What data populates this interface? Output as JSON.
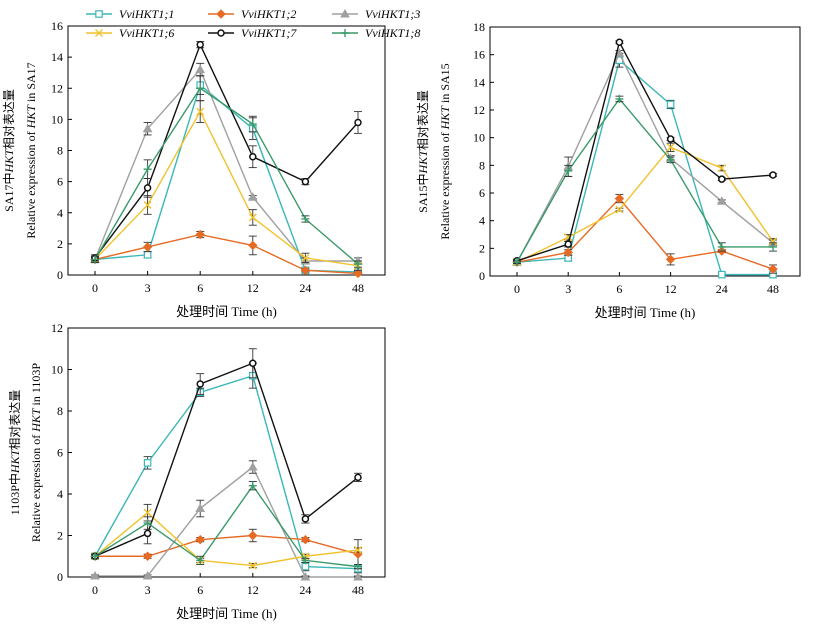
{
  "chart_data": [
    {
      "type": "line",
      "panel": "SA17",
      "categories": [
        "0",
        "3",
        "6",
        "12",
        "24",
        "48"
      ],
      "xlabel": "处理时间 Time (h)",
      "ylabel_line1_prefix": "SA17中",
      "ylabel_line1_gene": "HKT",
      "ylabel_line1_suffix": "相对表达量",
      "ylabel_line2_prefix": "Relative expression of ",
      "ylabel_line2_gene": "HKT",
      "ylabel_line2_suffix": " in SA17",
      "ylim": [
        0,
        16
      ],
      "yticks": [
        0,
        2,
        4,
        6,
        8,
        10,
        12,
        14,
        16
      ],
      "series": [
        {
          "name": "VviHKT1;1",
          "color": "#3bb7b7",
          "marker": "square",
          "values": [
            1.0,
            1.3,
            12.2,
            9.4,
            0.3,
            0.2
          ],
          "errors": [
            0.2,
            0.2,
            0.6,
            0.7,
            0.2,
            0.1
          ]
        },
        {
          "name": "VviHKT1;2",
          "color": "#e76a24",
          "marker": "diamond",
          "values": [
            1.0,
            1.8,
            2.6,
            1.9,
            0.3,
            0.1
          ],
          "errors": [
            0.1,
            0.3,
            0.2,
            0.6,
            0.1,
            0.1
          ]
        },
        {
          "name": "VviHKT1;3",
          "color": "#a0a0a0",
          "marker": "triangle",
          "values": [
            1.0,
            9.4,
            13.2,
            5.0,
            0.9,
            0.9
          ],
          "errors": [
            0.2,
            0.4,
            0.4,
            0.1,
            0.2,
            0.2
          ]
        },
        {
          "name": "VviHKT1;6",
          "color": "#f2c22e",
          "marker": "x",
          "values": [
            1.0,
            4.5,
            10.5,
            3.7,
            1.1,
            0.6
          ],
          "errors": [
            0.2,
            0.6,
            0.7,
            0.5,
            0.3,
            0.3
          ]
        },
        {
          "name": "VviHKT1;7",
          "color": "#111111",
          "marker": "circle",
          "values": [
            1.1,
            5.6,
            14.8,
            7.6,
            6.0,
            9.8
          ],
          "errors": [
            0.2,
            0.6,
            0.2,
            0.7,
            0.2,
            0.7
          ]
        },
        {
          "name": "VviHKT1;8",
          "color": "#3a9a6a",
          "marker": "plus",
          "values": [
            1.0,
            6.8,
            12.0,
            9.7,
            3.6,
            0.7
          ],
          "errors": [
            0.2,
            0.6,
            0.8,
            0.5,
            0.2,
            0.2
          ]
        }
      ]
    },
    {
      "type": "line",
      "panel": "SA15",
      "categories": [
        "0",
        "3",
        "6",
        "12",
        "24",
        "48"
      ],
      "xlabel": "处理时间 Time (h)",
      "ylabel_line1_prefix": "SA15中",
      "ylabel_line1_gene": "HKT",
      "ylabel_line1_suffix": "相对表达量",
      "ylabel_line2_prefix": "Relative expression of ",
      "ylabel_line2_gene": "HKT",
      "ylabel_line2_suffix": " in SA15",
      "ylim": [
        0,
        18
      ],
      "yticks": [
        0,
        2,
        4,
        6,
        8,
        10,
        12,
        14,
        16,
        18
      ],
      "series": [
        {
          "name": "VviHKT1;1",
          "color": "#3bb7b7",
          "marker": "square",
          "values": [
            1.0,
            1.3,
            15.6,
            12.4,
            0.1,
            0.1
          ],
          "errors": [
            0.1,
            0.2,
            0.5,
            0.3,
            0.1,
            0.1
          ]
        },
        {
          "name": "VviHKT1;2",
          "color": "#e76a24",
          "marker": "diamond",
          "values": [
            1.0,
            1.7,
            5.6,
            1.2,
            1.8,
            0.5
          ],
          "errors": [
            0.1,
            0.2,
            0.3,
            0.4,
            0.1,
            0.3
          ]
        },
        {
          "name": "VviHKT1;3",
          "color": "#a0a0a0",
          "marker": "triangle",
          "values": [
            1.0,
            7.9,
            16.1,
            8.5,
            5.4,
            2.4
          ],
          "errors": [
            0.1,
            0.7,
            0.2,
            0.2,
            0.1,
            0.2
          ]
        },
        {
          "name": "VviHKT1;6",
          "color": "#f2c22e",
          "marker": "x",
          "values": [
            1.0,
            2.8,
            4.8,
            9.3,
            7.8,
            2.5
          ],
          "errors": [
            0.1,
            0.2,
            0.1,
            0.3,
            0.2,
            0.2
          ]
        },
        {
          "name": "VviHKT1;7",
          "color": "#111111",
          "marker": "circle",
          "values": [
            1.1,
            2.3,
            16.9,
            9.9,
            7.0,
            7.3
          ],
          "errors": [
            0.1,
            0.2,
            0.1,
            0.1,
            0.1,
            0.1
          ]
        },
        {
          "name": "VviHKT1;8",
          "color": "#3a9a6a",
          "marker": "plus",
          "values": [
            1.0,
            7.6,
            12.8,
            8.4,
            2.1,
            2.1
          ],
          "errors": [
            0.1,
            0.4,
            0.2,
            0.2,
            0.3,
            0.3
          ]
        }
      ]
    },
    {
      "type": "line",
      "panel": "1103P",
      "categories": [
        "0",
        "3",
        "6",
        "12",
        "24",
        "48"
      ],
      "xlabel": "处理时间 Time (h)",
      "ylabel_line1_prefix": "1103P中",
      "ylabel_line1_gene": "HKT",
      "ylabel_line1_suffix": "相对表达量",
      "ylabel_line2_prefix": "Relative expression of ",
      "ylabel_line2_gene": "HKT",
      "ylabel_line2_suffix": " in 1103P",
      "ylim": [
        0,
        12
      ],
      "yticks": [
        0,
        2,
        4,
        6,
        8,
        10,
        12
      ],
      "series": [
        {
          "name": "VviHKT1;1",
          "color": "#3bb7b7",
          "marker": "square",
          "values": [
            1.0,
            5.5,
            8.9,
            9.7,
            0.5,
            0.4
          ],
          "errors": [
            0.1,
            0.3,
            0.2,
            0.6,
            0.2,
            0.2
          ]
        },
        {
          "name": "VviHKT1;2",
          "color": "#e76a24",
          "marker": "diamond",
          "values": [
            1.0,
            1.0,
            1.8,
            2.0,
            1.8,
            1.1
          ],
          "errors": [
            0.1,
            0.1,
            0.1,
            0.3,
            0.1,
            0.7
          ]
        },
        {
          "name": "VviHKT1;3",
          "color": "#a0a0a0",
          "marker": "triangle",
          "values": [
            0.05,
            0.05,
            3.3,
            5.3,
            0.0,
            0.0
          ],
          "errors": [
            0.05,
            0.05,
            0.4,
            0.3,
            0.05,
            0.05
          ]
        },
        {
          "name": "VviHKT1;6",
          "color": "#f2c22e",
          "marker": "x",
          "values": [
            1.0,
            3.1,
            0.8,
            0.55,
            1.0,
            1.3
          ],
          "errors": [
            0.1,
            0.4,
            0.1,
            0.1,
            0.1,
            0.1
          ]
        },
        {
          "name": "VviHKT1;7",
          "color": "#111111",
          "marker": "circle",
          "values": [
            1.0,
            2.1,
            9.3,
            10.3,
            2.8,
            4.8
          ],
          "errors": [
            0.1,
            0.5,
            0.5,
            0.7,
            0.2,
            0.2
          ]
        },
        {
          "name": "VviHKT1;8",
          "color": "#3a9a6a",
          "marker": "plus",
          "values": [
            1.0,
            2.6,
            0.8,
            4.4,
            0.8,
            0.5
          ],
          "errors": [
            0.1,
            0.3,
            0.2,
            0.2,
            0.1,
            0.1
          ]
        }
      ]
    }
  ],
  "legend": [
    {
      "label": "VviHKT1;1",
      "color": "#3bb7b7",
      "marker": "square"
    },
    {
      "label": "VviHKT1;2",
      "color": "#e76a24",
      "marker": "diamond"
    },
    {
      "label": "VviHKT1;3",
      "color": "#a0a0a0",
      "marker": "triangle"
    },
    {
      "label": "VviHKT1;6",
      "color": "#f2c22e",
      "marker": "x"
    },
    {
      "label": "VviHKT1;7",
      "color": "#111111",
      "marker": "circle"
    },
    {
      "label": "VviHKT1;8",
      "color": "#3a9a6a",
      "marker": "plus"
    }
  ]
}
